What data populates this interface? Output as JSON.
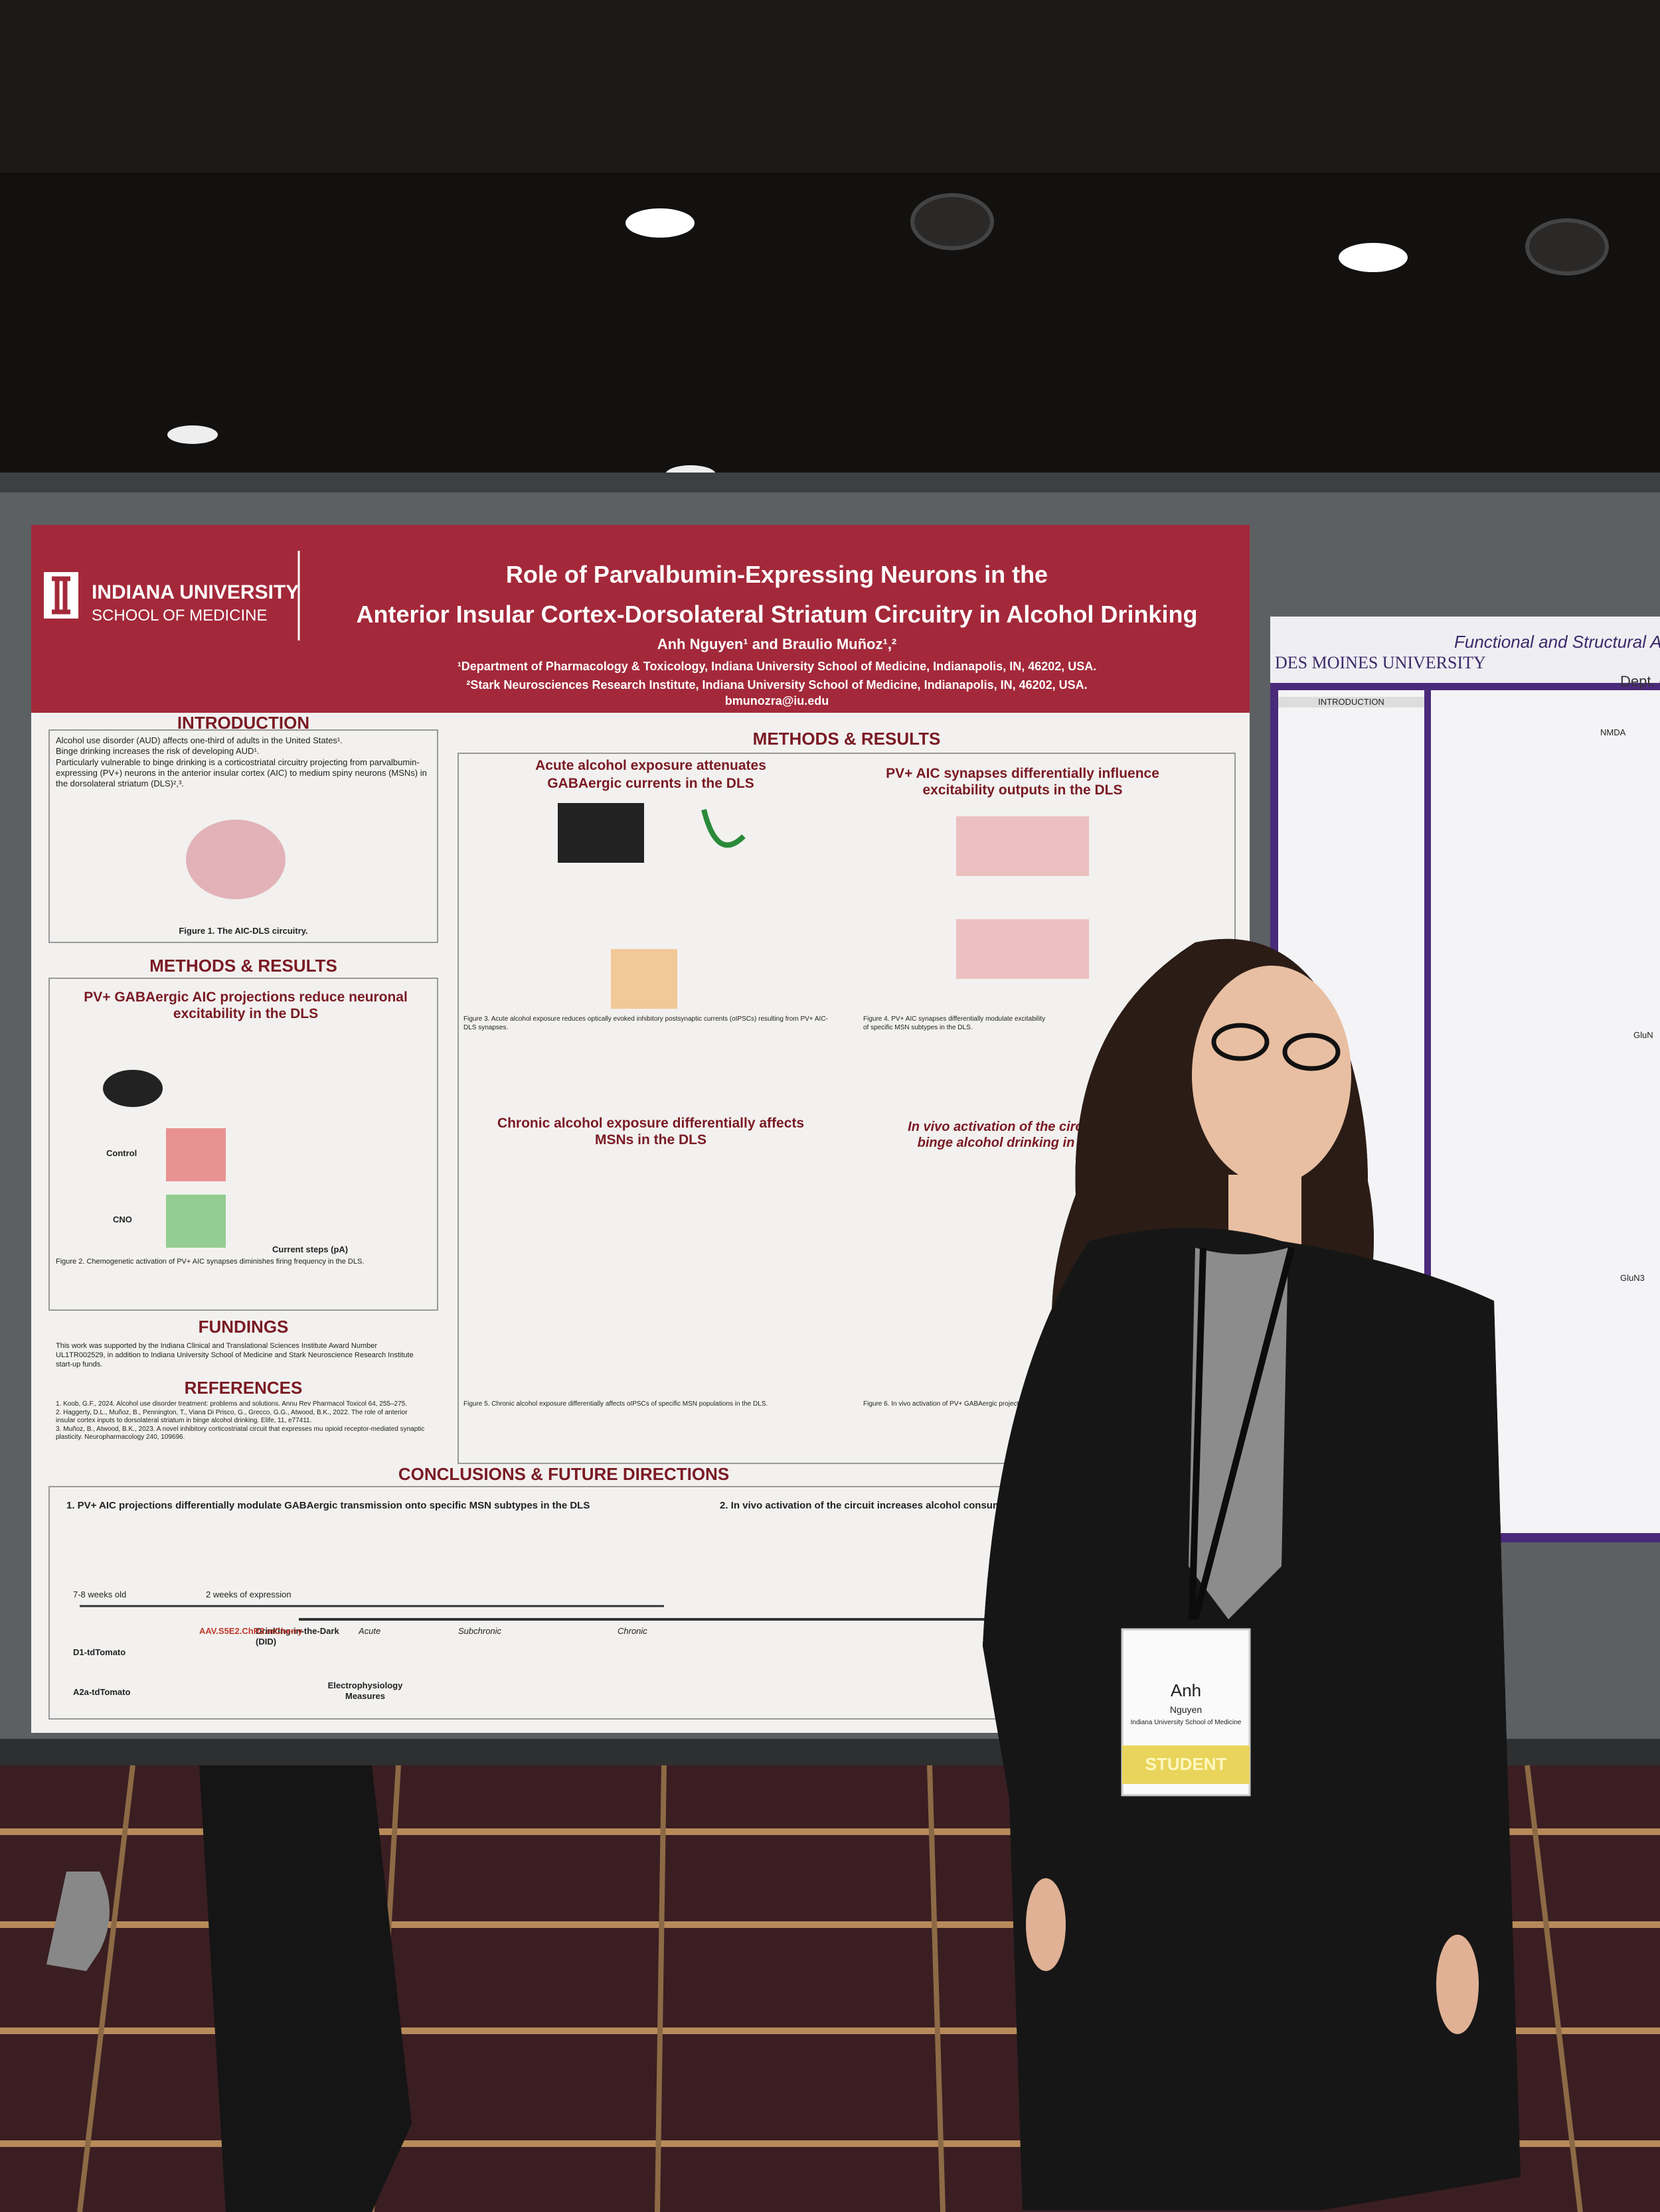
{
  "poster": {
    "logo": {
      "name": "INDIANA UNIVERSITY",
      "school": "SCHOOL OF MEDICINE"
    },
    "title_lines": [
      "Role of Parvalbumin-Expressing Neurons in the",
      "Anterior Insular Cortex-Dorsolateral Striatum Circuitry in Alcohol Drinking"
    ],
    "authors": "Anh Nguyen¹ and Braulio Muñoz¹,²",
    "affiliations": [
      "¹Department of Pharmacology & Toxicology, Indiana University School of Medicine, Indianapolis, IN, 46202, USA.",
      "²Stark Neurosciences Research Institute, Indiana University School of Medicine, Indianapolis, IN, 46202, USA."
    ],
    "email": "bmunozra@iu.edu",
    "introduction": {
      "title": "INTRODUCTION",
      "bullets": [
        "Alcohol use disorder (AUD) affects one-third of adults in the United States¹.",
        "Binge drinking increases the risk of developing AUD¹.",
        "Particularly vulnerable to binge drinking is a corticostriatal circuitry projecting from parvalbumin-expressing (PV+) neurons in the anterior insular cortex (AIC) to medium spiny neurons (MSNs) in the dorsolateral striatum (DLS)²,³."
      ],
      "figure_caption": "Figure 1. The AIC-DLS circuitry."
    },
    "methods_left": {
      "title": "METHODS & RESULTS",
      "subtitle": "PV+ GABAergic AIC projections reduce neuronal excitability in the DLS",
      "panel_labels": [
        "Control",
        "CNO"
      ],
      "x_label": "Current steps (pA)",
      "figure_caption": "Figure 2. Chemogenetic activation of PV+ AIC synapses diminishes firing frequency in the DLS."
    },
    "fundings": {
      "title": "FUNDINGS",
      "text": "This work was supported by the Indiana Clinical and Translational Sciences Institute Award Number UL1TR002529, in addition to Indiana University School of Medicine and Stark Neuroscience Research Institute start-up funds."
    },
    "references": {
      "title": "REFERENCES",
      "items": [
        "1. Koob, G.F., 2024. Alcohol use disorder treatment: problems and solutions. Annu Rev Pharmacol Toxicol 64, 255–275.",
        "2. Haggerty, D.L., Muñoz, B., Pennington, T., Viana Di Prisco, G., Grecco, G.G., Atwood, B.K., 2022. The role of anterior insular cortex inputs to dorsolateral striatum in binge alcohol drinking. Elife, 11, e77411.",
        "3. Muñoz, B., Atwood, B.K., 2023. A novel inhibitory corticostriatal circuit that expresses mu opioid receptor-mediated synaptic plasticity. Neuropharmacology 240, 109696."
      ]
    },
    "methods_center": {
      "title": "METHODS & RESULTS",
      "figures": [
        {
          "title": [
            "Acute alcohol exposure attenuates",
            "GABAergic currents in the DLS"
          ],
          "caption": "Figure 3. Acute alcohol exposure reduces optically evoked inhibitory postsynaptic currents (oIPSCs) resulting from PV+ AIC-DLS synapses."
        },
        {
          "title": [
            "PV+ AIC synapses differentially influence",
            "excitability outputs in the DLS"
          ],
          "caption": "Figure 4. PV+ AIC synapses differentially modulate excitability of specific MSN subtypes in the DLS."
        },
        {
          "title": [
            "Chronic alcohol exposure differentially affects",
            "MSNs in the DLS"
          ],
          "caption": "Figure 5. Chronic alcohol exposure differentially affects oIPSCs of specific MSN populations in the DLS."
        },
        {
          "title": [
            "In vivo activation of the circuit increases",
            "binge alcohol drinking in female mice"
          ],
          "caption": "Figure 6. In vivo activation of PV+ GABAergic projections."
        }
      ]
    },
    "conclusions": {
      "title": "CONCLUSIONS & FUTURE DIRECTIONS",
      "items": [
        "1. PV+ AIC projections differentially modulate GABAergic transmission onto specific MSN subtypes in the DLS",
        "2. In vivo activation of the circuit increases alcohol consumption with p"
      ],
      "timeline": [
        "7-8 weeks old",
        "2 weeks of expression",
        "Drinking-in-the-Dark (DID)",
        "Acute",
        "Subchronic",
        "Chronic",
        "Electrophysiology Measures"
      ],
      "mice": [
        "D1-tdTomato",
        "A2a-tdTomato"
      ],
      "virus": "AAV.S5E2.ChR2.mCherry"
    }
  },
  "side_poster": {
    "institution": "DES MOINES UNIVERSITY",
    "title": "Functional and Structural Altera",
    "dept": "Dept. of",
    "sections": [
      "INTRODUCTION",
      "NMDA",
      "GluN",
      "GluN3"
    ]
  },
  "badge": {
    "name": "Anh",
    "surname": "Nguyen",
    "affiliation": "Indiana University School of Medicine",
    "ribbon": "STUDENT"
  }
}
